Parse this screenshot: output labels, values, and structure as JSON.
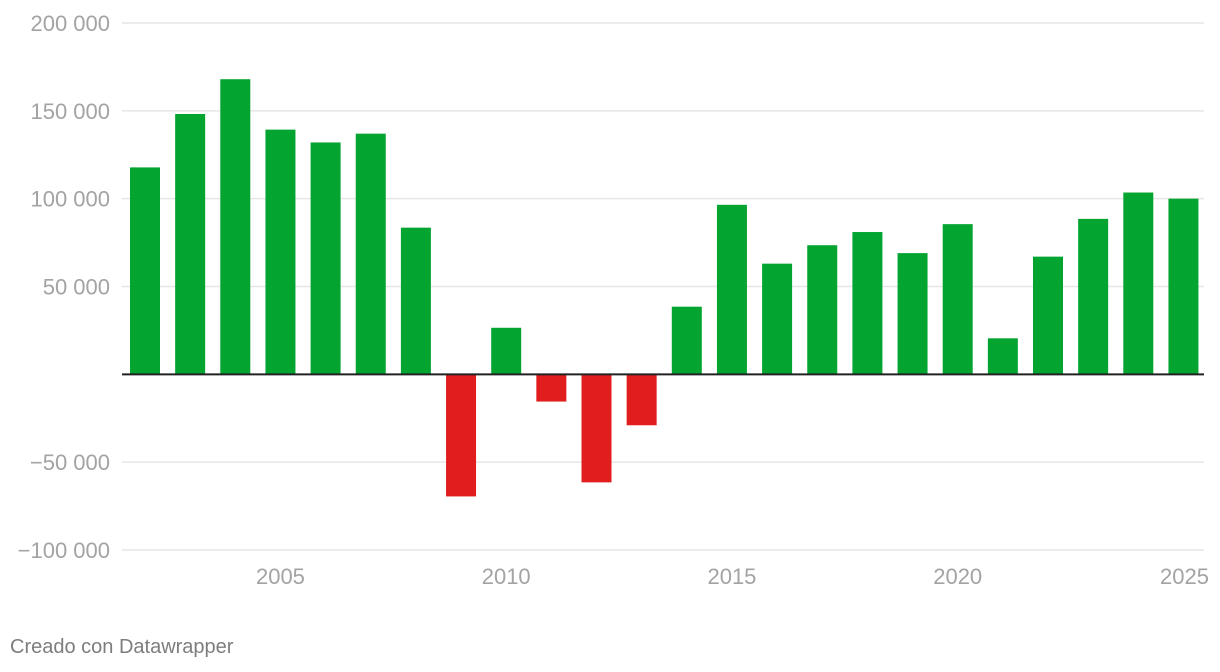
{
  "chart_data": {
    "type": "bar",
    "title": "",
    "xlabel": "",
    "ylabel": "",
    "categories": [
      2002,
      2003,
      2004,
      2005,
      2006,
      2007,
      2008,
      2009,
      2010,
      2011,
      2012,
      2013,
      2014,
      2015,
      2016,
      2017,
      2018,
      2019,
      2020,
      2021,
      2022,
      2023,
      2024,
      2025
    ],
    "values": [
      117800,
      148200,
      168000,
      139300,
      132000,
      137000,
      83500,
      -69500,
      26500,
      -15500,
      -61500,
      -29000,
      38500,
      96500,
      63000,
      73500,
      81000,
      69000,
      85500,
      20500,
      67000,
      88500,
      103500,
      100000
    ],
    "ylim": [
      -100000,
      200000
    ],
    "yticks": [
      200000,
      150000,
      100000,
      50000,
      -50000,
      -100000
    ],
    "ytick_labels": [
      "200 000",
      "150 000",
      "100 000",
      "50 000",
      "−50 000",
      "−100 000"
    ],
    "xticks": [
      2005,
      2010,
      2015,
      2020,
      2025
    ],
    "xtick_labels": [
      "2005",
      "2010",
      "2015",
      "2020",
      "2025"
    ],
    "grid": true,
    "colors": {
      "positive": "#04a431",
      "negative": "#e21d1d",
      "grid": "#e6e6e6",
      "zero_line": "#222222",
      "tick_text": "#a3a3a3"
    }
  },
  "footer": {
    "credit": "Creado con Datawrapper"
  }
}
